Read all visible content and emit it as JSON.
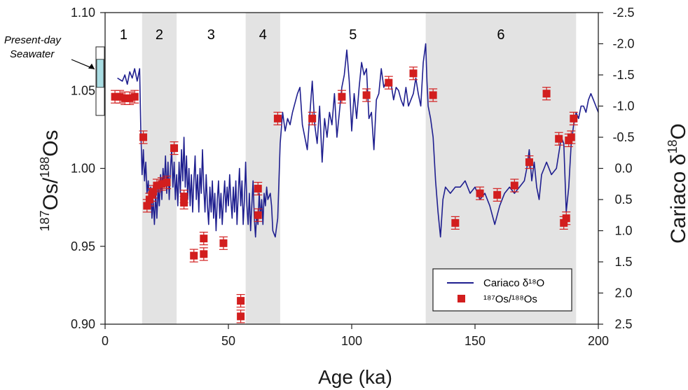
{
  "chart_data": {
    "type": "line+scatter",
    "xlabel": "Age (ka)",
    "ylabel_left": {
      "sup": "187",
      "mid": "Os/",
      "sup2": "188",
      "end": "Os"
    },
    "ylabel_right": {
      "main": "Cariaco δ",
      "sup": "18",
      "end": "O"
    },
    "xlim": [
      0,
      200
    ],
    "ylim_left": [
      0.9,
      1.1
    ],
    "ylim_right": [
      2.5,
      -2.5
    ],
    "x_ticks": [
      "0",
      "50",
      "100",
      "150",
      "200"
    ],
    "x_tick_values": [
      0,
      50,
      100,
      150,
      200
    ],
    "y_left_ticks": [
      "0.90",
      "0.95",
      "1.00",
      "1.05",
      "1.10"
    ],
    "y_left_tick_values": [
      0.9,
      0.95,
      1.0,
      1.05,
      1.1
    ],
    "y_right_ticks": [
      "2.5",
      "2.0",
      "1.5",
      "1.0",
      "0.5",
      "0.0",
      "-0.5",
      "-1.0",
      "-1.5",
      "-2.0",
      "-2.5"
    ],
    "y_right_tick_values": [
      2.5,
      2.0,
      1.5,
      1.0,
      0.5,
      0.0,
      -0.5,
      -1.0,
      -1.5,
      -2.0,
      -2.5
    ],
    "intervals": [
      {
        "label": "1",
        "start": 0,
        "end": 15,
        "shaded": false
      },
      {
        "label": "2",
        "start": 15,
        "end": 29,
        "shaded": true
      },
      {
        "label": "3",
        "start": 29,
        "end": 57,
        "shaded": false
      },
      {
        "label": "4",
        "start": 57,
        "end": 71,
        "shaded": true
      },
      {
        "label": "5",
        "start": 71,
        "end": 130,
        "shaded": false
      },
      {
        "label": "6",
        "start": 130,
        "end": 191,
        "shaded": true
      }
    ],
    "seawater": {
      "label_line1": "Present-day",
      "label_line2": "Seawater",
      "outer_range": [
        1.034,
        1.078
      ],
      "inner_range": [
        1.052,
        1.07
      ]
    },
    "legend": {
      "position": "bottom-right",
      "line_label": "Cariaco δ¹⁸O",
      "marker_label": "¹⁸⁷Os/¹⁸⁸Os"
    },
    "colors": {
      "line": "#1f1f8f",
      "marker": "#d21e1e",
      "shade": "#e3e3e3",
      "seawater": "#a9dde3"
    },
    "series": [
      {
        "name": "Cariaco δ18O",
        "kind": "line",
        "axis": "right",
        "points": [
          [
            5,
            -1.45
          ],
          [
            7,
            -1.4
          ],
          [
            8,
            -1.5
          ],
          [
            9,
            -1.35
          ],
          [
            10,
            -1.55
          ],
          [
            11,
            -1.45
          ],
          [
            12,
            -1.6
          ],
          [
            13,
            -1.4
          ],
          [
            14,
            -1.6
          ],
          [
            14.5,
            -0.6
          ],
          [
            15,
            0.1
          ],
          [
            15.5,
            -0.3
          ],
          [
            16,
            0.2
          ],
          [
            16.5,
            -0.1
          ],
          [
            17,
            0.4
          ],
          [
            17.5,
            0.2
          ],
          [
            18,
            0.6
          ],
          [
            18.5,
            0.3
          ],
          [
            19,
            0.8
          ],
          [
            19.5,
            0.5
          ],
          [
            20,
            0.9
          ],
          [
            20.5,
            0.4
          ],
          [
            21,
            0.8
          ],
          [
            21.5,
            0.3
          ],
          [
            22,
            0.6
          ],
          [
            22.5,
            0.1
          ],
          [
            23,
            0.5
          ],
          [
            23.5,
            0.0
          ],
          [
            24,
            0.3
          ],
          [
            24.5,
            -0.2
          ],
          [
            25,
            0.4
          ],
          [
            25.5,
            -0.1
          ],
          [
            26,
            0.5
          ],
          [
            26.5,
            0.0
          ],
          [
            27,
            -0.3
          ],
          [
            27.5,
            0.3
          ],
          [
            28,
            -0.1
          ],
          [
            28.5,
            0.5
          ],
          [
            29,
            0.1
          ],
          [
            29.5,
            0.6
          ],
          [
            30,
            -0.1
          ],
          [
            30.5,
            0.4
          ],
          [
            31,
            -0.3
          ],
          [
            31.5,
            0.2
          ],
          [
            32,
            -0.5
          ],
          [
            32.5,
            0.3
          ],
          [
            33,
            -0.2
          ],
          [
            33.5,
            0.5
          ],
          [
            34,
            0.0
          ],
          [
            34.5,
            0.6
          ],
          [
            35,
            0.1
          ],
          [
            35.5,
            0.7
          ],
          [
            36,
            0.2
          ],
          [
            36.5,
            -0.2
          ],
          [
            37,
            0.5
          ],
          [
            37.5,
            0.1
          ],
          [
            38,
            0.7
          ],
          [
            38.5,
            0.0
          ],
          [
            39,
            0.4
          ],
          [
            39.5,
            -0.3
          ],
          [
            40,
            0.3
          ],
          [
            40.5,
            0.7
          ],
          [
            41,
            0.1
          ],
          [
            41.5,
            0.6
          ],
          [
            42,
            0.9
          ],
          [
            42.5,
            0.3
          ],
          [
            43,
            0.7
          ],
          [
            43.5,
            0.2
          ],
          [
            44,
            0.8
          ],
          [
            44.5,
            0.4
          ],
          [
            45,
            1.0
          ],
          [
            45.5,
            0.5
          ],
          [
            46,
            0.2
          ],
          [
            46.5,
            0.8
          ],
          [
            47,
            0.4
          ],
          [
            47.5,
            0.9
          ],
          [
            48,
            0.5
          ],
          [
            48.5,
            0.2
          ],
          [
            49,
            0.7
          ],
          [
            49.5,
            0.3
          ],
          [
            50,
            0.6
          ],
          [
            50.5,
            0.1
          ],
          [
            51,
            0.5
          ],
          [
            51.5,
            0.8
          ],
          [
            52,
            0.3
          ],
          [
            52.5,
            0.7
          ],
          [
            53,
            0.2
          ],
          [
            53.5,
            0.9
          ],
          [
            54,
            0.4
          ],
          [
            54.5,
            0.0
          ],
          [
            55,
            0.6
          ],
          [
            55.5,
            0.2
          ],
          [
            56,
            0.9
          ],
          [
            56.5,
            0.5
          ],
          [
            57,
            -0.1
          ],
          [
            57.5,
            0.6
          ],
          [
            58,
            0.9
          ],
          [
            58.5,
            0.4
          ],
          [
            59,
            1.0
          ],
          [
            59.5,
            0.6
          ],
          [
            60,
            0.2
          ],
          [
            60.5,
            0.8
          ],
          [
            61,
            1.1
          ],
          [
            61.5,
            0.7
          ],
          [
            62,
            0.9
          ],
          [
            62.5,
            0.4
          ],
          [
            63,
            0.8
          ],
          [
            63.5,
            0.5
          ],
          [
            64,
            0.9
          ],
          [
            64.5,
            0.4
          ],
          [
            65,
            0.6
          ],
          [
            65.5,
            0.3
          ],
          [
            66,
            0.5
          ],
          [
            67,
            0.4
          ],
          [
            67.5,
            0.6
          ],
          [
            68,
            1.0
          ],
          [
            69,
            1.1
          ],
          [
            70,
            0.8
          ],
          [
            71,
            -0.4
          ],
          [
            72,
            -0.9
          ],
          [
            73,
            -0.6
          ],
          [
            74,
            -0.8
          ],
          [
            75,
            -0.7
          ],
          [
            76,
            -0.9
          ],
          [
            78,
            -1.2
          ],
          [
            79,
            -1.3
          ],
          [
            80,
            -0.7
          ],
          [
            82,
            -0.3
          ],
          [
            84,
            -1.4
          ],
          [
            85,
            -0.7
          ],
          [
            86,
            -0.4
          ],
          [
            87,
            -1.0
          ],
          [
            88,
            -0.1
          ],
          [
            89,
            -0.8
          ],
          [
            90,
            -0.5
          ],
          [
            91,
            -0.9
          ],
          [
            92,
            -0.7
          ],
          [
            93,
            -1.2
          ],
          [
            94,
            -0.5
          ],
          [
            95,
            -0.9
          ],
          [
            96,
            -1.3
          ],
          [
            97,
            -1.5
          ],
          [
            98,
            -1.9
          ],
          [
            99,
            -1.4
          ],
          [
            100,
            -0.6
          ],
          [
            101,
            -1.2
          ],
          [
            102,
            -0.8
          ],
          [
            103,
            -1.3
          ],
          [
            104,
            -1.7
          ],
          [
            105,
            -1.5
          ],
          [
            106,
            -1.6
          ],
          [
            107,
            -0.8
          ],
          [
            108,
            -0.9
          ],
          [
            109,
            -0.3
          ],
          [
            110,
            -1.1
          ],
          [
            111,
            -1.2
          ],
          [
            112,
            -1.6
          ],
          [
            113,
            -1.3
          ],
          [
            114,
            -1.4
          ],
          [
            115,
            -1.4
          ],
          [
            116,
            -1.35
          ],
          [
            117,
            -1.1
          ],
          [
            118,
            -1.3
          ],
          [
            119,
            -1.25
          ],
          [
            120,
            -1.1
          ],
          [
            121,
            -1.0
          ],
          [
            122,
            -1.3
          ],
          [
            123,
            -1.0
          ],
          [
            124,
            -1.1
          ],
          [
            125,
            -1.2
          ],
          [
            126,
            -1.45
          ],
          [
            127,
            -1.2
          ],
          [
            128,
            -1.0
          ],
          [
            129,
            -1.7
          ],
          [
            130,
            -2.0
          ],
          [
            130.5,
            -1.4
          ],
          [
            131,
            -1.0
          ],
          [
            132,
            -0.8
          ],
          [
            133,
            -0.5
          ],
          [
            134,
            0.2
          ],
          [
            135,
            0.7
          ],
          [
            136,
            1.1
          ],
          [
            137,
            0.5
          ],
          [
            138,
            0.3
          ],
          [
            140,
            0.4
          ],
          [
            142,
            0.3
          ],
          [
            144,
            0.3
          ],
          [
            146,
            0.2
          ],
          [
            148,
            0.4
          ],
          [
            150,
            0.3
          ],
          [
            152,
            0.5
          ],
          [
            154,
            0.4
          ],
          [
            156,
            0.6
          ],
          [
            158,
            0.9
          ],
          [
            160,
            0.6
          ],
          [
            162,
            0.4
          ],
          [
            164,
            0.3
          ],
          [
            166,
            0.4
          ],
          [
            168,
            0.3
          ],
          [
            170,
            0.2
          ],
          [
            171,
            0.0
          ],
          [
            172,
            -0.3
          ],
          [
            173,
            0.2
          ],
          [
            174,
            -0.1
          ],
          [
            175,
            0.3
          ],
          [
            176,
            0.5
          ],
          [
            177,
            0.1
          ],
          [
            178,
            0.0
          ],
          [
            179,
            -0.1
          ],
          [
            181,
            0.1
          ],
          [
            183,
            0.0
          ],
          [
            185,
            -0.5
          ],
          [
            186,
            -0.4
          ],
          [
            187,
            0.7
          ],
          [
            188,
            0.3
          ],
          [
            189,
            -0.4
          ],
          [
            190,
            -0.7
          ],
          [
            191,
            -0.9
          ],
          [
            192,
            -0.8
          ],
          [
            193,
            -1.0
          ],
          [
            194,
            -1.0
          ],
          [
            195,
            -0.9
          ],
          [
            196,
            -1.1
          ],
          [
            197,
            -1.2
          ],
          [
            198,
            -1.1
          ],
          [
            199,
            -1.0
          ],
          [
            200,
            -0.9
          ]
        ]
      },
      {
        "name": "187Os/188Os",
        "kind": "scatter",
        "axis": "left",
        "points": [
          [
            4,
            1.046
          ],
          [
            6,
            1.046
          ],
          [
            8,
            1.045
          ],
          [
            10,
            1.045
          ],
          [
            12,
            1.046
          ],
          [
            15.5,
            1.02
          ],
          [
            17,
            0.976
          ],
          [
            18,
            0.98
          ],
          [
            19,
            0.983
          ],
          [
            19.5,
            0.985
          ],
          [
            21,
            0.989
          ],
          [
            23,
            0.99
          ],
          [
            25,
            0.991
          ],
          [
            28,
            1.013
          ],
          [
            32,
            0.982
          ],
          [
            32,
            0.978
          ],
          [
            36,
            0.944
          ],
          [
            40,
            0.945
          ],
          [
            40,
            0.955
          ],
          [
            48,
            0.952
          ],
          [
            55,
            0.915
          ],
          [
            55,
            0.905
          ],
          [
            62,
            0.987
          ],
          [
            62,
            0.97
          ],
          [
            70,
            1.032
          ],
          [
            84,
            1.032
          ],
          [
            96,
            1.046
          ],
          [
            106,
            1.047
          ],
          [
            115,
            1.055
          ],
          [
            125,
            1.061
          ],
          [
            133,
            1.047
          ],
          [
            142,
            0.965
          ],
          [
            152,
            0.984
          ],
          [
            159,
            0.983
          ],
          [
            166,
            0.989
          ],
          [
            172,
            1.004
          ],
          [
            179,
            1.048
          ],
          [
            184,
            1.019
          ],
          [
            186,
            0.965
          ],
          [
            187,
            0.968
          ],
          [
            188,
            1.018
          ],
          [
            189,
            1.02
          ],
          [
            190,
            1.032
          ]
        ]
      }
    ]
  }
}
